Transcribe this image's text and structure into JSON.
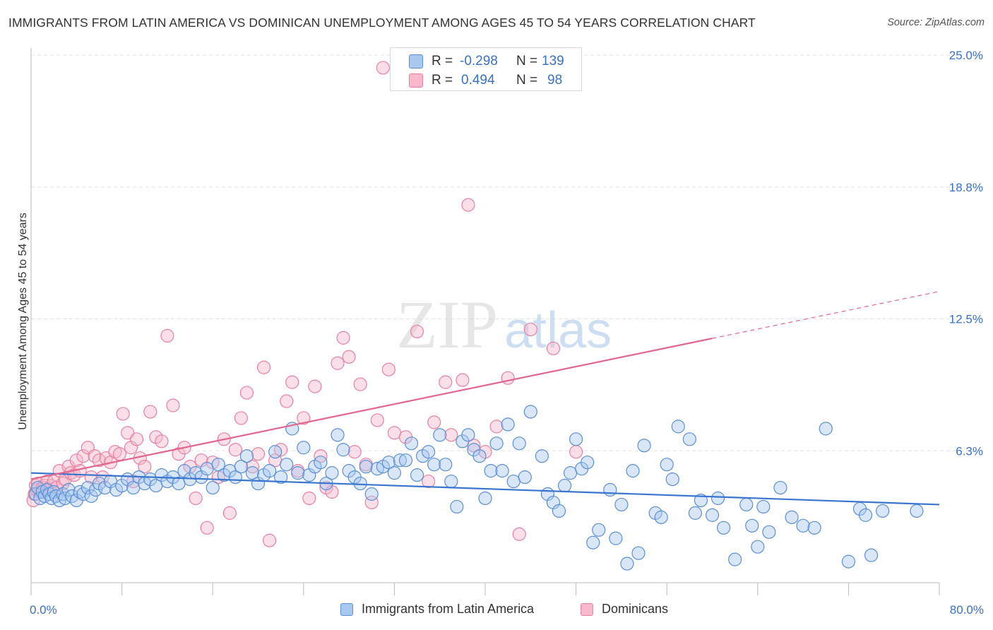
{
  "title": "IMMIGRANTS FROM LATIN AMERICA VS DOMINICAN UNEMPLOYMENT AMONG AGES 45 TO 54 YEARS CORRELATION CHART",
  "source": "Source: ZipAtlas.com",
  "watermark": {
    "zip": "ZIP",
    "atlas": "atlas"
  },
  "stats": [
    {
      "r_label": "R =",
      "r_value": "-0.298",
      "n_label": "N =",
      "n_value": "139"
    },
    {
      "r_label": "R =",
      "r_value": "0.494",
      "n_label": "N =",
      "n_value": "98"
    }
  ],
  "legend": [
    "Immigrants from Latin America",
    "Dominicans"
  ],
  "colors": {
    "blue_fill": "#a9c8f0",
    "blue_stroke": "#5b8fd6",
    "blue_line": "#3a76cf",
    "pink_fill": "#f7b9cb",
    "pink_stroke": "#e9809f",
    "pink_line": "#e3668f",
    "tick_label": "#3a72c4",
    "grid": "#e3e3e3"
  },
  "chart_data": {
    "type": "scatter",
    "title": "IMMIGRANTS FROM LATIN AMERICA VS DOMINICAN UNEMPLOYMENT AMONG AGES 45 TO 54 YEARS CORRELATION CHART",
    "xlabel": "",
    "ylabel": "Unemployment Among Ages 45 to 54 years",
    "xlim": [
      0,
      80
    ],
    "ylim": [
      0,
      25
    ],
    "x_tick_labels": [
      "0.0%",
      "80.0%"
    ],
    "y_ticks": [
      6.25,
      12.5,
      18.75,
      25.0
    ],
    "y_tick_labels": [
      "6.3%",
      "12.5%",
      "18.8%",
      "25.0%"
    ],
    "series": [
      {
        "name": "Immigrants from Latin America",
        "color": "blue",
        "trend": {
          "x0": 0,
          "y0": 5.2,
          "x1": 80,
          "y1": 3.7,
          "x_solid_end": 80
        },
        "points": [
          [
            0.4,
            4.2
          ],
          [
            0.6,
            4.5
          ],
          [
            0.8,
            4.0
          ],
          [
            1.0,
            4.3
          ],
          [
            1.2,
            4.1
          ],
          [
            1.4,
            4.4
          ],
          [
            1.6,
            4.2
          ],
          [
            1.8,
            4.0
          ],
          [
            2.0,
            4.3
          ],
          [
            2.2,
            4.1
          ],
          [
            2.5,
            3.9
          ],
          [
            2.8,
            4.2
          ],
          [
            3.0,
            4.0
          ],
          [
            3.3,
            4.4
          ],
          [
            3.6,
            4.1
          ],
          [
            4.0,
            3.9
          ],
          [
            4.3,
            4.3
          ],
          [
            4.6,
            4.2
          ],
          [
            5.0,
            4.5
          ],
          [
            5.3,
            4.1
          ],
          [
            5.7,
            4.4
          ],
          [
            6.0,
            4.7
          ],
          [
            6.5,
            4.5
          ],
          [
            7.0,
            4.8
          ],
          [
            7.5,
            4.4
          ],
          [
            8.0,
            4.6
          ],
          [
            8.5,
            4.9
          ],
          [
            9.0,
            4.5
          ],
          [
            9.5,
            5.0
          ],
          [
            10.0,
            4.7
          ],
          [
            10.5,
            4.9
          ],
          [
            11.0,
            4.6
          ],
          [
            11.5,
            5.1
          ],
          [
            12.0,
            4.8
          ],
          [
            12.5,
            5.0
          ],
          [
            13.0,
            4.7
          ],
          [
            13.5,
            5.3
          ],
          [
            14.0,
            4.9
          ],
          [
            14.5,
            5.2
          ],
          [
            15.0,
            5.0
          ],
          [
            15.5,
            5.4
          ],
          [
            16.0,
            4.5
          ],
          [
            16.5,
            5.6
          ],
          [
            17.0,
            5.1
          ],
          [
            17.5,
            5.3
          ],
          [
            18.0,
            5.0
          ],
          [
            18.5,
            5.5
          ],
          [
            19.0,
            6.0
          ],
          [
            19.5,
            5.2
          ],
          [
            20.0,
            4.7
          ],
          [
            20.5,
            5.1
          ],
          [
            21.0,
            5.3
          ],
          [
            21.5,
            6.2
          ],
          [
            22.0,
            5.0
          ],
          [
            22.5,
            5.6
          ],
          [
            23.0,
            7.3
          ],
          [
            23.5,
            5.2
          ],
          [
            24.0,
            6.4
          ],
          [
            24.5,
            5.1
          ],
          [
            25.0,
            5.5
          ],
          [
            25.5,
            5.7
          ],
          [
            26.0,
            4.7
          ],
          [
            26.5,
            5.2
          ],
          [
            27.0,
            7.0
          ],
          [
            27.5,
            6.3
          ],
          [
            28.0,
            5.3
          ],
          [
            28.5,
            5.0
          ],
          [
            29.0,
            4.7
          ],
          [
            29.5,
            5.5
          ],
          [
            30.0,
            4.2
          ],
          [
            30.5,
            5.4
          ],
          [
            31.0,
            5.5
          ],
          [
            31.5,
            5.7
          ],
          [
            32.0,
            5.2
          ],
          [
            32.5,
            5.8
          ],
          [
            33.0,
            5.8
          ],
          [
            33.5,
            6.6
          ],
          [
            34.0,
            5.1
          ],
          [
            34.5,
            6.0
          ],
          [
            35.0,
            6.2
          ],
          [
            35.5,
            5.6
          ],
          [
            36.0,
            7.0
          ],
          [
            36.5,
            5.6
          ],
          [
            37.0,
            4.8
          ],
          [
            37.5,
            3.6
          ],
          [
            38.0,
            6.7
          ],
          [
            38.5,
            7.0
          ],
          [
            39.0,
            6.3
          ],
          [
            39.5,
            6.0
          ],
          [
            40.0,
            4.0
          ],
          [
            40.5,
            5.3
          ],
          [
            41.0,
            6.6
          ],
          [
            41.5,
            5.3
          ],
          [
            42.0,
            7.5
          ],
          [
            42.5,
            4.8
          ],
          [
            43.0,
            6.6
          ],
          [
            43.5,
            5.0
          ],
          [
            44.0,
            8.1
          ],
          [
            45.0,
            6.0
          ],
          [
            45.5,
            4.2
          ],
          [
            46.0,
            3.8
          ],
          [
            46.5,
            3.4
          ],
          [
            47.0,
            4.6
          ],
          [
            47.5,
            5.2
          ],
          [
            48.0,
            6.8
          ],
          [
            48.5,
            5.4
          ],
          [
            49.0,
            5.7
          ],
          [
            49.5,
            1.9
          ],
          [
            50.0,
            2.5
          ],
          [
            51.0,
            4.4
          ],
          [
            51.5,
            2.1
          ],
          [
            52.0,
            3.7
          ],
          [
            52.5,
            0.9
          ],
          [
            53.0,
            5.3
          ],
          [
            53.5,
            1.4
          ],
          [
            54.0,
            6.5
          ],
          [
            55.0,
            3.3
          ],
          [
            55.5,
            3.1
          ],
          [
            56.0,
            5.6
          ],
          [
            56.5,
            4.9
          ],
          [
            57.0,
            7.4
          ],
          [
            58.0,
            6.8
          ],
          [
            58.5,
            3.3
          ],
          [
            59.0,
            3.9
          ],
          [
            60.0,
            3.2
          ],
          [
            60.5,
            4.0
          ],
          [
            61.0,
            2.6
          ],
          [
            62.0,
            1.1
          ],
          [
            63.0,
            3.7
          ],
          [
            63.5,
            2.7
          ],
          [
            64.0,
            1.7
          ],
          [
            64.5,
            3.6
          ],
          [
            65.0,
            2.4
          ],
          [
            66.0,
            4.5
          ],
          [
            67.0,
            3.1
          ],
          [
            68.0,
            2.7
          ],
          [
            69.0,
            2.6
          ],
          [
            70.0,
            7.3
          ],
          [
            72.0,
            1.0
          ],
          [
            73.0,
            3.5
          ],
          [
            73.5,
            3.2
          ],
          [
            74.0,
            1.3
          ],
          [
            75.0,
            3.4
          ],
          [
            78.0,
            3.4
          ]
        ]
      },
      {
        "name": "Dominicans",
        "color": "pink",
        "trend": {
          "x0": 0,
          "y0": 4.9,
          "x1": 80,
          "y1": 13.8,
          "x_solid_end": 60
        },
        "points": [
          [
            0.2,
            3.9
          ],
          [
            0.3,
            4.2
          ],
          [
            0.4,
            4.6
          ],
          [
            0.5,
            4.4
          ],
          [
            0.6,
            4.7
          ],
          [
            0.8,
            4.3
          ],
          [
            1.0,
            4.5
          ],
          [
            1.2,
            4.6
          ],
          [
            1.4,
            4.8
          ],
          [
            1.6,
            4.4
          ],
          [
            1.8,
            4.6
          ],
          [
            2.0,
            4.8
          ],
          [
            2.2,
            4.5
          ],
          [
            2.5,
            5.3
          ],
          [
            2.8,
            4.7
          ],
          [
            3.0,
            4.9
          ],
          [
            3.3,
            5.5
          ],
          [
            3.5,
            5.2
          ],
          [
            3.8,
            5.1
          ],
          [
            4.0,
            5.8
          ],
          [
            4.3,
            5.3
          ],
          [
            4.6,
            6.0
          ],
          [
            5.0,
            6.4
          ],
          [
            5.3,
            5.0
          ],
          [
            5.6,
            6.0
          ],
          [
            6.0,
            5.8
          ],
          [
            6.3,
            5.0
          ],
          [
            6.6,
            5.9
          ],
          [
            7.0,
            5.7
          ],
          [
            7.4,
            6.2
          ],
          [
            7.8,
            6.1
          ],
          [
            8.1,
            8.0
          ],
          [
            8.5,
            7.1
          ],
          [
            8.8,
            6.4
          ],
          [
            9.0,
            4.8
          ],
          [
            9.3,
            6.8
          ],
          [
            9.6,
            5.9
          ],
          [
            10.0,
            5.5
          ],
          [
            10.5,
            8.1
          ],
          [
            11.0,
            6.9
          ],
          [
            11.5,
            6.7
          ],
          [
            12.0,
            11.7
          ],
          [
            12.5,
            8.4
          ],
          [
            13.0,
            6.1
          ],
          [
            13.5,
            6.4
          ],
          [
            14.0,
            5.5
          ],
          [
            14.5,
            4.0
          ],
          [
            15.0,
            5.8
          ],
          [
            15.5,
            2.6
          ],
          [
            16.0,
            5.7
          ],
          [
            16.5,
            5.0
          ],
          [
            17.0,
            6.8
          ],
          [
            17.5,
            3.3
          ],
          [
            18.0,
            6.3
          ],
          [
            18.5,
            7.8
          ],
          [
            19.0,
            9.0
          ],
          [
            19.5,
            5.5
          ],
          [
            20.0,
            6.1
          ],
          [
            20.5,
            10.2
          ],
          [
            21.0,
            2.0
          ],
          [
            21.5,
            5.8
          ],
          [
            22.0,
            6.3
          ],
          [
            22.5,
            8.6
          ],
          [
            23.0,
            9.5
          ],
          [
            23.5,
            5.3
          ],
          [
            24.0,
            7.8
          ],
          [
            24.5,
            4.0
          ],
          [
            25.0,
            9.3
          ],
          [
            25.5,
            6.0
          ],
          [
            26.0,
            4.5
          ],
          [
            26.5,
            4.3
          ],
          [
            27.0,
            10.4
          ],
          [
            27.5,
            11.6
          ],
          [
            28.0,
            10.7
          ],
          [
            28.5,
            6.2
          ],
          [
            29.0,
            9.4
          ],
          [
            29.5,
            5.6
          ],
          [
            30.0,
            3.8
          ],
          [
            30.5,
            7.7
          ],
          [
            31.0,
            24.4
          ],
          [
            31.5,
            10.1
          ],
          [
            32.0,
            7.1
          ],
          [
            33.0,
            6.9
          ],
          [
            34.0,
            11.9
          ],
          [
            35.0,
            4.8
          ],
          [
            35.5,
            7.6
          ],
          [
            36.5,
            9.5
          ],
          [
            37.0,
            7.0
          ],
          [
            38.0,
            9.6
          ],
          [
            38.5,
            17.9
          ],
          [
            39.0,
            6.5
          ],
          [
            40.0,
            6.2
          ],
          [
            41.0,
            7.4
          ],
          [
            42.0,
            9.7
          ],
          [
            43.0,
            2.3
          ],
          [
            44.0,
            12.0
          ],
          [
            46.0,
            11.1
          ],
          [
            48.0,
            6.2
          ]
        ]
      }
    ]
  }
}
